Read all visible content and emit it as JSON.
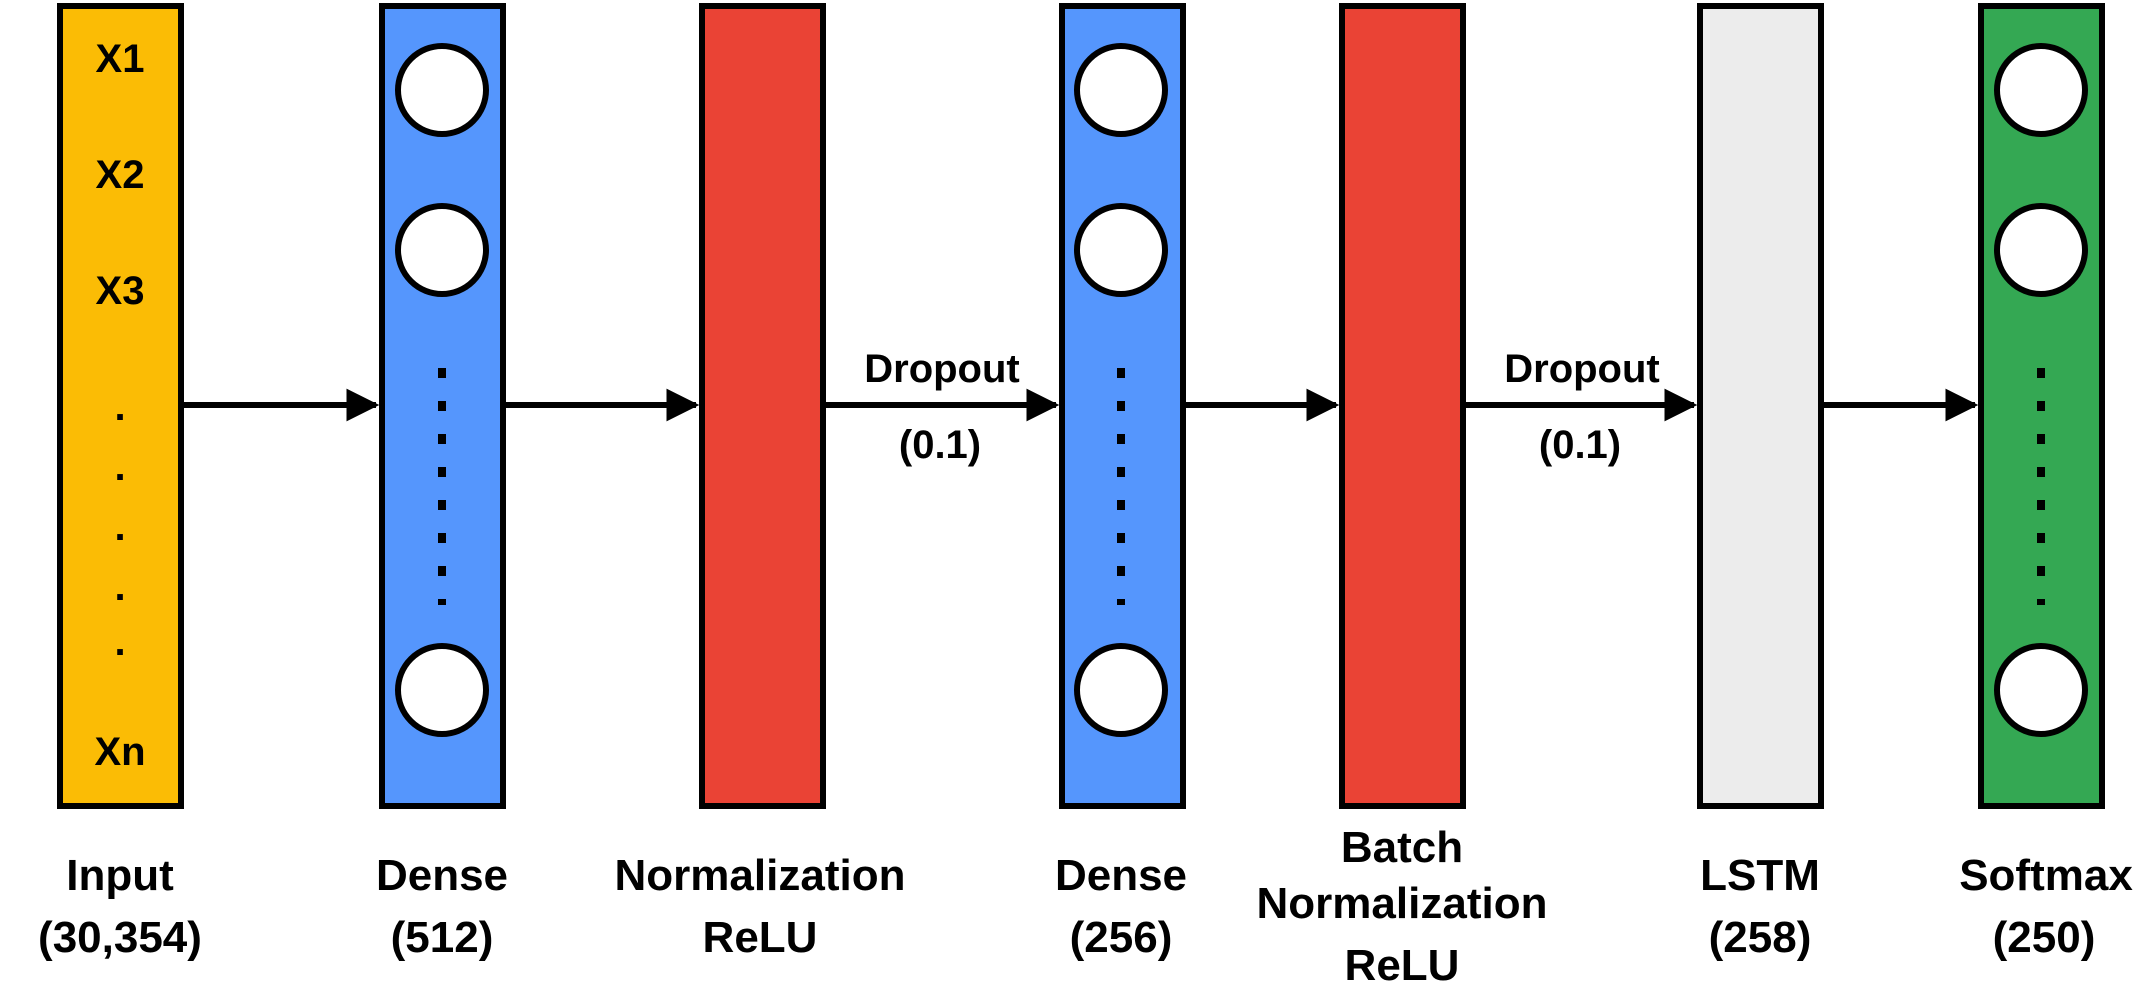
{
  "input_layer": {
    "features": [
      "X1",
      "X2",
      "X3"
    ],
    "ellipsis": [
      ".",
      ".",
      ".",
      ".",
      "."
    ],
    "last_feature": "Xn",
    "label": "Input",
    "shape": "(30,354)",
    "color": "#fbbc05"
  },
  "dense_1": {
    "label": "Dense",
    "units": "(512)",
    "color": "#5596fd"
  },
  "normalization_1": {
    "label_line1": "Normalization",
    "label_line2": "ReLU",
    "color": "#ea4335"
  },
  "dropout_1": {
    "label": "Dropout",
    "rate": "(0.1)"
  },
  "dense_2": {
    "label": "Dense",
    "units": "(256)",
    "color": "#5596fd"
  },
  "normalization_2": {
    "label_line1": "Batch",
    "label_line2": "Normalization",
    "label_line3": "ReLU",
    "color": "#ea4335"
  },
  "dropout_2": {
    "label": "Dropout",
    "rate": "(0.1)"
  },
  "lstm": {
    "label": "LSTM",
    "units": "(258)",
    "color": "#ececec"
  },
  "softmax": {
    "label": "Softmax",
    "units": "(250)",
    "color": "#34a853"
  }
}
